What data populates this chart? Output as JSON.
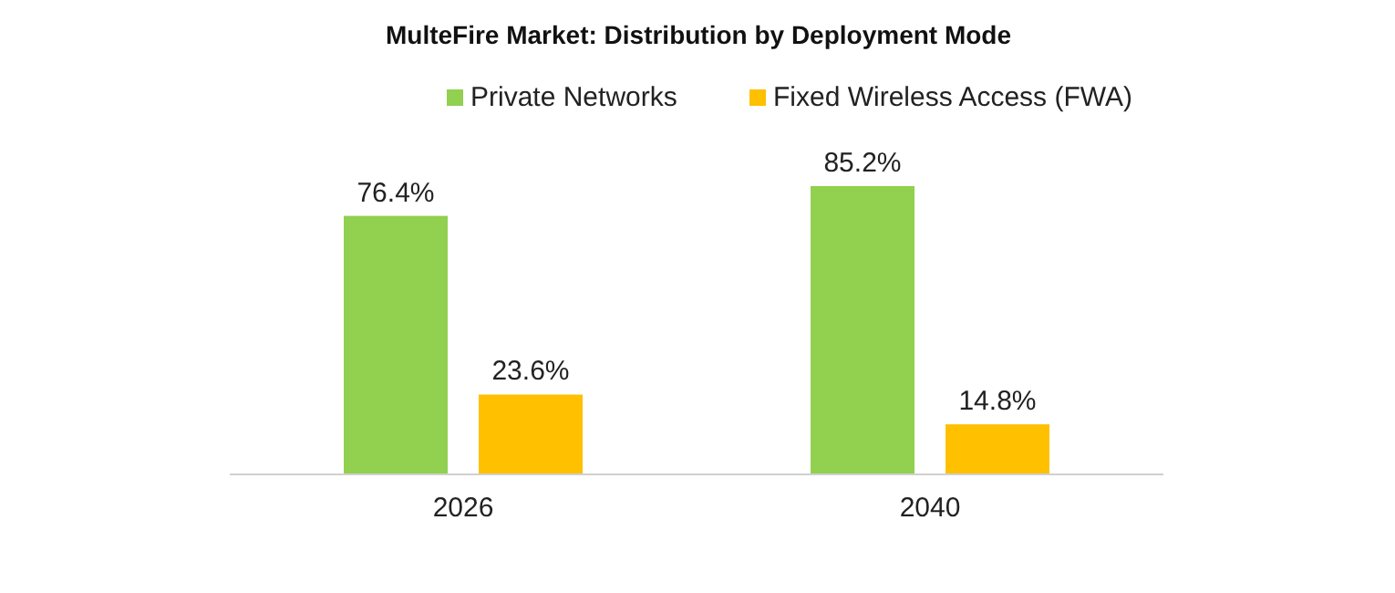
{
  "chart_data": {
    "type": "bar",
    "title": "MulteFire Market: Distribution by Deployment Mode",
    "categories": [
      "2026",
      "2040"
    ],
    "series": [
      {
        "name": "Private Networks",
        "color": "#92d050",
        "values": [
          76.4,
          85.2
        ],
        "value_labels": [
          "76.4%",
          "85.2%"
        ]
      },
      {
        "name": "Fixed Wireless Access (FWA)",
        "color": "#ffc000",
        "values": [
          23.6,
          14.8
        ],
        "value_labels": [
          "23.6%",
          "14.8%"
        ]
      }
    ],
    "legend": "top",
    "tick_labels": "x"
  }
}
